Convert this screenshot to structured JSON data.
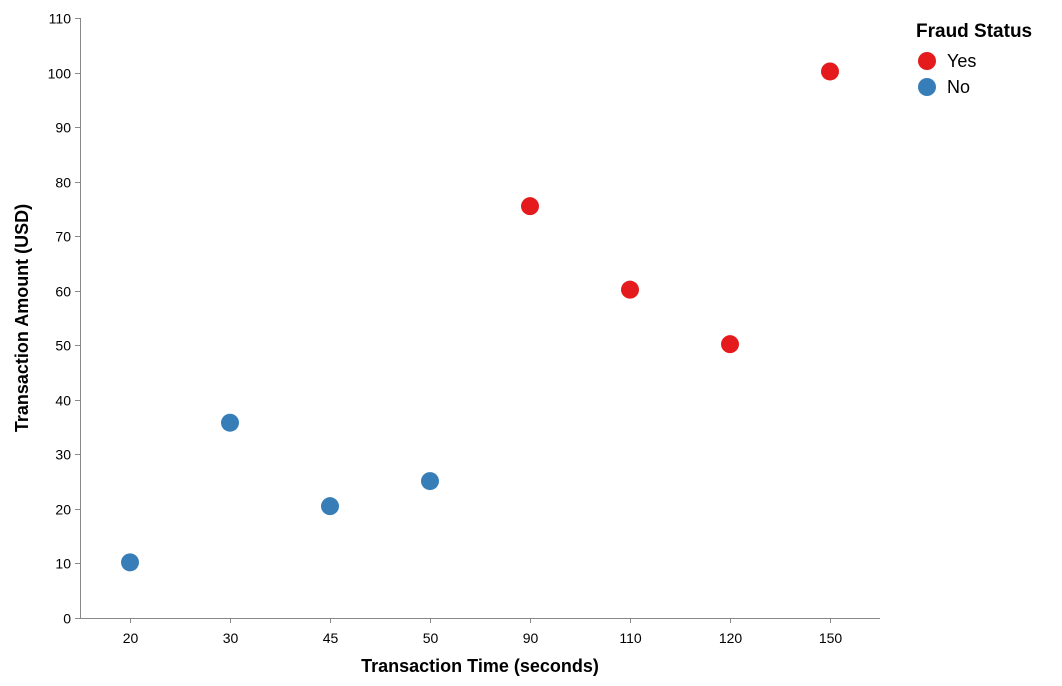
{
  "chart_data": {
    "type": "scatter",
    "xlabel": "Transaction Time (seconds)",
    "ylabel": "Transaction Amount (USD)",
    "x_scale": "ordinal",
    "categories": [
      "20",
      "30",
      "45",
      "50",
      "90",
      "110",
      "120",
      "150"
    ],
    "ylim": [
      0,
      110
    ],
    "yticks": [
      0,
      10,
      20,
      30,
      40,
      50,
      60,
      70,
      80,
      90,
      100,
      110
    ],
    "grid": false,
    "legend": {
      "title": "Fraud Status",
      "placement": "top-right",
      "entries": [
        {
          "label": "Yes",
          "color": "#e41a1c"
        },
        {
          "label": "No",
          "color": "#377eb8"
        }
      ]
    },
    "series": [
      {
        "name": "Yes",
        "color": "#e41a1c",
        "points": [
          {
            "x": "90",
            "y": 75.5
          },
          {
            "x": "110",
            "y": 60.2
          },
          {
            "x": "120",
            "y": 50.2
          },
          {
            "x": "150",
            "y": 100.2
          }
        ]
      },
      {
        "name": "No",
        "color": "#377eb8",
        "points": [
          {
            "x": "20",
            "y": 10.2
          },
          {
            "x": "30",
            "y": 35.8
          },
          {
            "x": "45",
            "y": 20.5
          },
          {
            "x": "50",
            "y": 25.1
          }
        ]
      }
    ]
  }
}
